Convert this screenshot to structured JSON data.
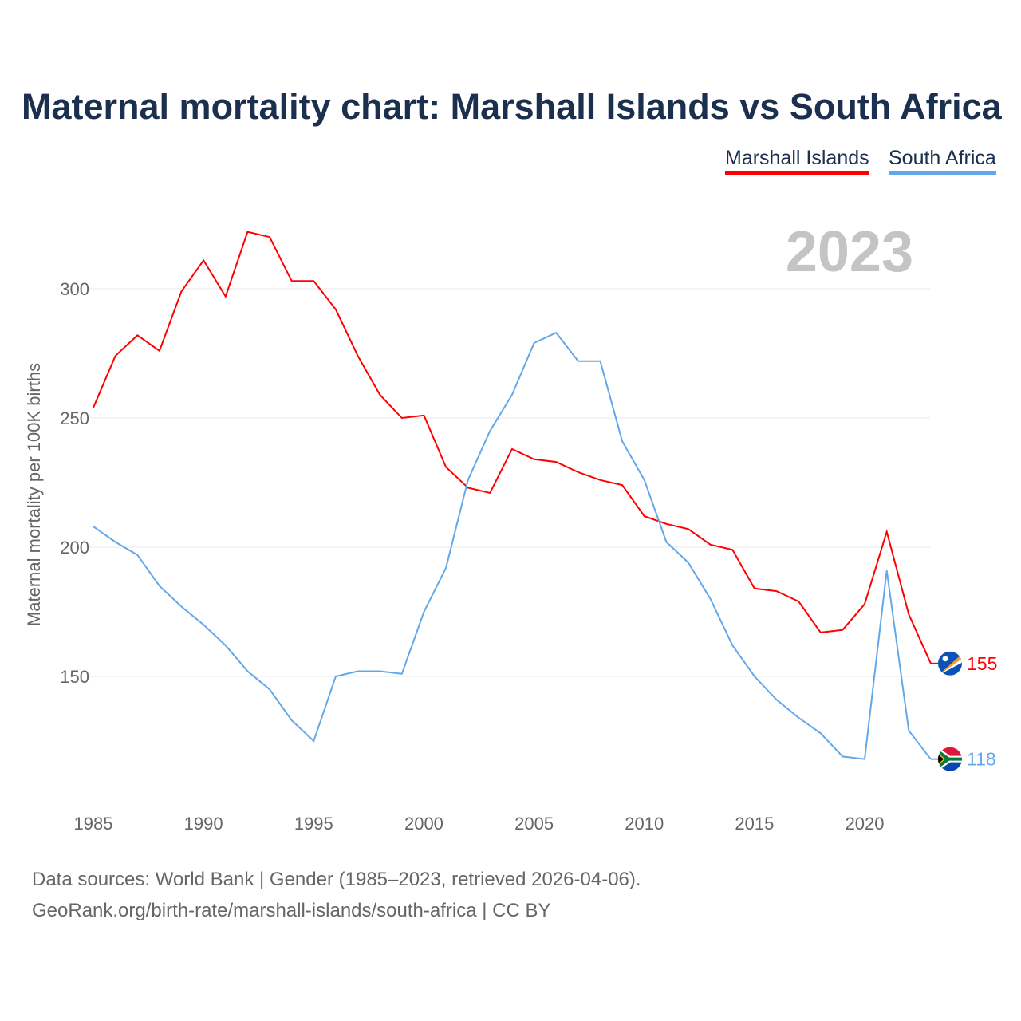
{
  "chart_data": {
    "type": "line",
    "title": "Maternal mortality chart: Marshall Islands vs South Africa",
    "ylabel": "Maternal mortality per 100K births",
    "xlabel": "",
    "year_label": "2023",
    "x": [
      1985,
      1986,
      1987,
      1988,
      1989,
      1990,
      1991,
      1992,
      1993,
      1994,
      1995,
      1996,
      1997,
      1998,
      1999,
      2000,
      2001,
      2002,
      2003,
      2004,
      2005,
      2006,
      2007,
      2008,
      2009,
      2010,
      2011,
      2012,
      2013,
      2014,
      2015,
      2016,
      2017,
      2018,
      2019,
      2020,
      2021,
      2022,
      2023
    ],
    "xlim": [
      1985,
      2023
    ],
    "ylim": [
      100,
      335
    ],
    "xticks": [
      "1985",
      "1990",
      "1995",
      "2000",
      "2005",
      "2010",
      "2015",
      "2020"
    ],
    "yticks": [
      "150",
      "200",
      "250",
      "300"
    ],
    "grid": true,
    "legend_position": "top-right",
    "series": [
      {
        "name": "Marshall Islands",
        "color": "#ff0000",
        "end_label": "155",
        "values": [
          254,
          274,
          282,
          276,
          299,
          311,
          297,
          322,
          320,
          303,
          303,
          292,
          274,
          259,
          250,
          251,
          231,
          223,
          221,
          238,
          234,
          233,
          229,
          226,
          224,
          212,
          209,
          207,
          201,
          199,
          184,
          183,
          179,
          167,
          168,
          178,
          206,
          174,
          155
        ]
      },
      {
        "name": "South Africa",
        "color": "#62a8ea",
        "end_label": "118",
        "values": [
          208,
          202,
          197,
          185,
          177,
          170,
          162,
          152,
          145,
          133,
          125,
          150,
          152,
          152,
          151,
          175,
          192,
          226,
          245,
          259,
          279,
          283,
          272,
          272,
          241,
          226,
          202,
          194,
          180,
          162,
          150,
          141,
          134,
          128,
          119,
          118,
          191,
          129,
          118
        ]
      }
    ]
  },
  "footer": {
    "line1": "Data sources: World Bank | Gender (1985–2023, retrieved 2026-04-06).",
    "line2": "GeoRank.org/birth-rate/marshall-islands/south-africa | CC BY"
  }
}
